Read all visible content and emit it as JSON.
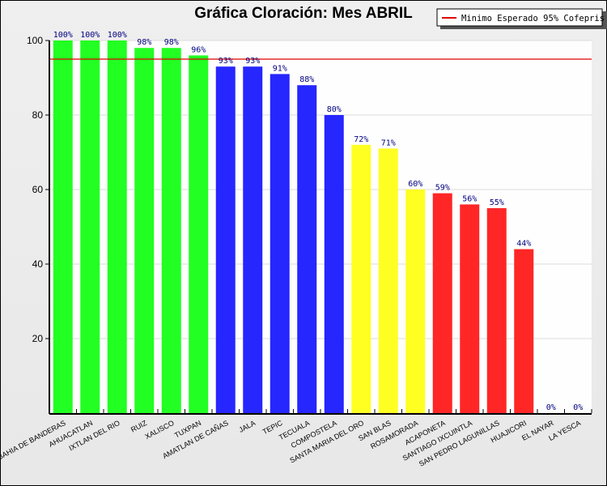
{
  "chart_data": {
    "type": "bar",
    "title": "Gráfica Cloración: Mes ABRIL",
    "xlabel": "",
    "ylabel": "",
    "ylim": [
      0,
      100
    ],
    "yticks": [
      20,
      40,
      60,
      80,
      100
    ],
    "grid": true,
    "categories": [
      "BAHIA DE BANDERAS",
      "AHUACATLAN",
      "IXTLAN DEL RIO",
      "RUIZ",
      "XALISCO",
      "TUXPAN",
      "AMATLAN DE CAÑAS",
      "JALA",
      "TEPIC",
      "TECUALA",
      "COMPOSTELA",
      "SANTA MARIA DEL ORO",
      "SAN BLAS",
      "ROSAMORADA",
      "ACAPONETA",
      "SANTIAGO IXCUINTLA",
      "SAN PEDRO LAGUNILLAS",
      "HUAJICORI",
      "EL NAYAR",
      "LA YESCA"
    ],
    "values": [
      100,
      100,
      100,
      98,
      98,
      96,
      93,
      93,
      91,
      88,
      80,
      72,
      71,
      60,
      59,
      56,
      55,
      44,
      0,
      0
    ],
    "labels": [
      "100%",
      "100%",
      "100%",
      "98%",
      "98%",
      "96%",
      "93%",
      "93%",
      "91%",
      "88%",
      "80%",
      "72%",
      "71%",
      "60%",
      "59%",
      "56%",
      "55%",
      "44%",
      "0%",
      "0%"
    ],
    "bar_colors": [
      "#22ff22",
      "#22ff22",
      "#22ff22",
      "#22ff22",
      "#22ff22",
      "#22ff22",
      "#2626ff",
      "#2626ff",
      "#2626ff",
      "#2626ff",
      "#2626ff",
      "#ffff22",
      "#ffff22",
      "#ffff22",
      "#ff2626",
      "#ff2626",
      "#ff2626",
      "#ff2626",
      "#ff2626",
      "#ff2626"
    ],
    "reference_line": {
      "value": 95,
      "color": "#dd0000",
      "label": "Minimo Esperado 95% Cofepris"
    },
    "legend": {
      "position": "top-right",
      "entries": [
        "Minimo Esperado 95% Cofepris"
      ]
    },
    "label_color": "#000080"
  }
}
